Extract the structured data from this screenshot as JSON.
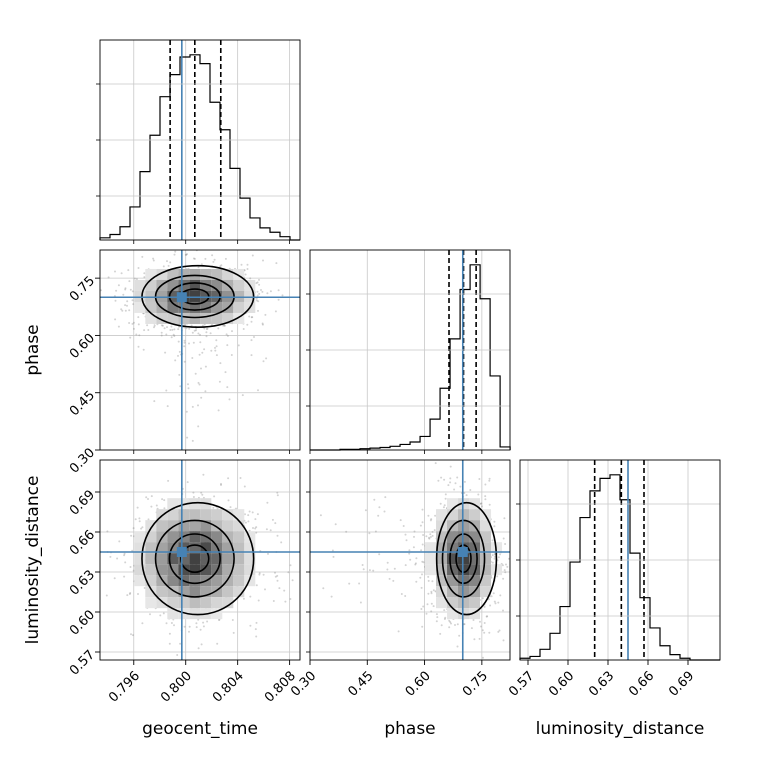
{
  "chart_data": {
    "type": "corner",
    "parameters": [
      "geocent_time",
      "phase",
      "luminosity_distance"
    ],
    "truths": [
      0.7997,
      0.7,
      0.645
    ],
    "quantiles": [
      [
        0.7988,
        0.8007,
        0.8027
      ],
      [
        0.664,
        0.702,
        0.735
      ],
      [
        0.62,
        0.64,
        0.657
      ]
    ],
    "ranges": [
      [
        0.7934,
        0.8088
      ],
      [
        0.3,
        0.8237
      ],
      [
        0.564,
        0.714
      ]
    ],
    "ticks": [
      [
        "0.796",
        "0.800",
        "0.804",
        "0.808"
      ],
      [
        "0.30",
        "0.45",
        "0.60",
        "0.75"
      ],
      [
        "0.57",
        "0.60",
        "0.63",
        "0.66",
        "0.69"
      ]
    ],
    "histograms": [
      {
        "edges_from": 0.7934,
        "bin_width": 0.00077,
        "counts": [
          2,
          5,
          12,
          30,
          62,
          95,
          130,
          150,
          166,
          168,
          160,
          125,
          100,
          65,
          38,
          20,
          11,
          7,
          3,
          0
        ]
      },
      {
        "edges_from": 0.3,
        "bin_width": 0.0262,
        "counts": [
          0,
          0,
          0,
          1,
          1,
          2,
          3,
          4,
          6,
          9,
          13,
          22,
          50,
          100,
          180,
          260,
          300,
          245,
          120,
          5
        ]
      },
      {
        "edges_from": 0.564,
        "bin_width": 0.0075,
        "counts": [
          1,
          2,
          6,
          15,
          30,
          55,
          80,
          95,
          102,
          104,
          90,
          60,
          35,
          18,
          8,
          3,
          1,
          0,
          0,
          0
        ]
      }
    ],
    "grid": true,
    "color": "#4682b4"
  }
}
